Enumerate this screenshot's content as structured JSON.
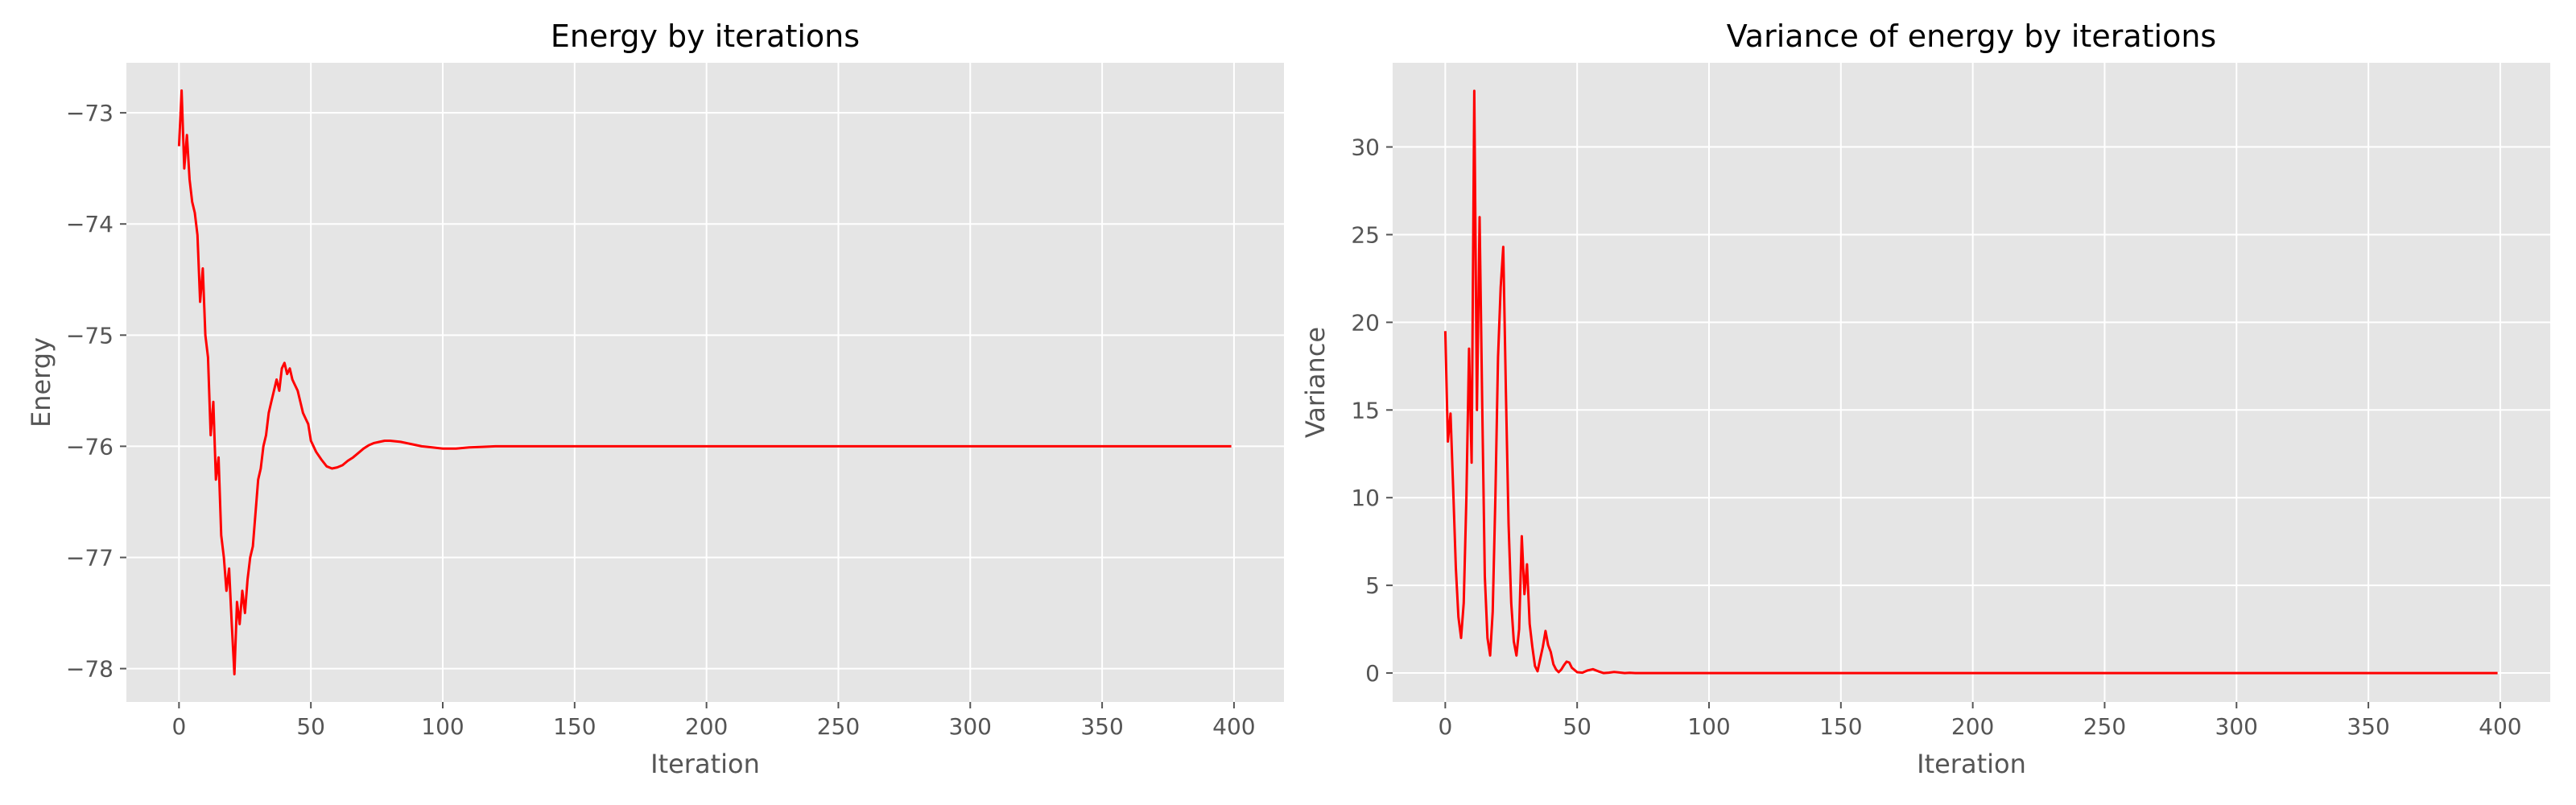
{
  "chart_data": [
    {
      "type": "line",
      "title": "Energy by iterations",
      "xlabel": "Iteration",
      "ylabel": "Energy",
      "xlim": [
        -19.95,
        418.95
      ],
      "ylim": [
        -78.3,
        -72.55
      ],
      "xticks": [
        0,
        50,
        100,
        150,
        200,
        250,
        300,
        350,
        400
      ],
      "yticks": [
        -78,
        -77,
        -76,
        -75,
        -74,
        -73
      ],
      "ytick_labels": [
        "−78",
        "−77",
        "−76",
        "−75",
        "−74",
        "−73"
      ],
      "grid": true,
      "series": [
        {
          "color": "#ff0000",
          "x": [
            0,
            1,
            2,
            3,
            4,
            5,
            6,
            7,
            8,
            9,
            10,
            11,
            12,
            13,
            14,
            15,
            16,
            17,
            18,
            19,
            20,
            21,
            22,
            23,
            24,
            25,
            26,
            27,
            28,
            29,
            30,
            31,
            32,
            33,
            34,
            35,
            36,
            37,
            38,
            39,
            40,
            41,
            42,
            43,
            44,
            45,
            46,
            47,
            48,
            49,
            50,
            52,
            54,
            56,
            58,
            60,
            62,
            64,
            66,
            68,
            70,
            72,
            74,
            76,
            78,
            80,
            84,
            88,
            92,
            96,
            100,
            105,
            110,
            115,
            120,
            130,
            140,
            150,
            160,
            175,
            200,
            250,
            300,
            350,
            399
          ],
          "y": [
            -73.3,
            -72.8,
            -73.5,
            -73.2,
            -73.6,
            -73.8,
            -73.9,
            -74.1,
            -74.7,
            -74.4,
            -75.0,
            -75.2,
            -75.9,
            -75.6,
            -76.3,
            -76.1,
            -76.8,
            -77.0,
            -77.3,
            -77.1,
            -77.6,
            -78.05,
            -77.4,
            -77.6,
            -77.3,
            -77.5,
            -77.2,
            -77.0,
            -76.9,
            -76.6,
            -76.3,
            -76.2,
            -76.0,
            -75.9,
            -75.7,
            -75.6,
            -75.5,
            -75.4,
            -75.5,
            -75.3,
            -75.25,
            -75.35,
            -75.3,
            -75.4,
            -75.45,
            -75.5,
            -75.6,
            -75.7,
            -75.75,
            -75.8,
            -75.95,
            -76.05,
            -76.12,
            -76.18,
            -76.2,
            -76.19,
            -76.17,
            -76.13,
            -76.1,
            -76.06,
            -76.02,
            -75.99,
            -75.97,
            -75.96,
            -75.95,
            -75.95,
            -75.96,
            -75.98,
            -76.0,
            -76.01,
            -76.02,
            -76.02,
            -76.01,
            -76.005,
            -76.0,
            -76.0,
            -76.0,
            -76.0,
            -76.0,
            -76.0,
            -76.0,
            -76.0,
            -76.0,
            -76.0,
            -76.0
          ]
        }
      ]
    },
    {
      "type": "line",
      "title": "Variance of energy by iterations",
      "xlabel": "Iteration",
      "ylabel": "Variance",
      "xlim": [
        -19.95,
        418.95
      ],
      "ylim": [
        -1.65,
        34.8
      ],
      "xticks": [
        0,
        50,
        100,
        150,
        200,
        250,
        300,
        350,
        400
      ],
      "yticks": [
        0,
        5,
        10,
        15,
        20,
        25,
        30
      ],
      "grid": true,
      "series": [
        {
          "color": "#ff0000",
          "x": [
            0,
            1,
            2,
            3,
            4,
            5,
            6,
            7,
            8,
            9,
            10,
            11,
            12,
            13,
            14,
            15,
            16,
            17,
            18,
            19,
            20,
            21,
            22,
            23,
            24,
            25,
            26,
            27,
            28,
            29,
            30,
            31,
            32,
            33,
            34,
            35,
            36,
            37,
            38,
            39,
            40,
            41,
            42,
            43,
            44,
            45,
            46,
            47,
            48,
            50,
            52,
            54,
            56,
            58,
            60,
            62,
            64,
            66,
            68,
            70,
            72,
            75,
            80,
            85,
            90,
            100,
            150,
            200,
            250,
            300,
            350,
            399
          ],
          "y": [
            19.5,
            13.2,
            14.8,
            10.5,
            6.0,
            3.2,
            2.0,
            4.0,
            10.0,
            18.5,
            12.0,
            33.2,
            15.0,
            26.0,
            15.5,
            5.5,
            2.0,
            1.0,
            3.5,
            10.0,
            18.0,
            22.0,
            24.3,
            16.0,
            8.5,
            4.0,
            1.8,
            1.0,
            2.5,
            7.8,
            4.5,
            6.2,
            2.8,
            1.5,
            0.4,
            0.1,
            0.8,
            1.5,
            2.4,
            1.6,
            1.2,
            0.5,
            0.2,
            0.05,
            0.2,
            0.45,
            0.65,
            0.6,
            0.3,
            0.05,
            0.02,
            0.15,
            0.22,
            0.1,
            0.0,
            0.02,
            0.06,
            0.03,
            0.0,
            0.01,
            0.0,
            0.0,
            0.0,
            0.0,
            0.0,
            0.0,
            0.0,
            0.0,
            0.0,
            0.0,
            0.0,
            0.0
          ]
        }
      ]
    }
  ]
}
